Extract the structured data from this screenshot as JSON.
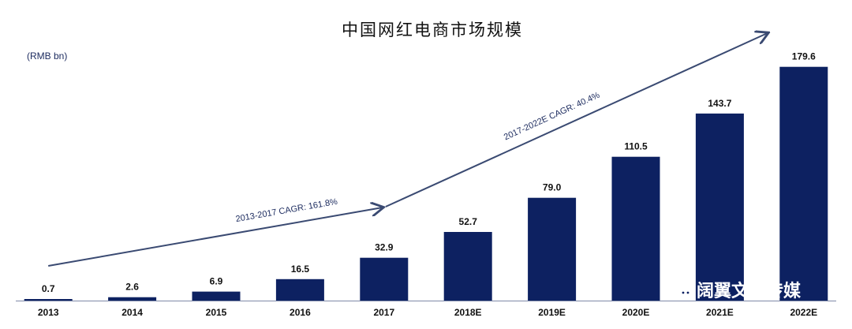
{
  "chart_data": {
    "type": "bar",
    "title": "中国网红电商市场规模",
    "ylabel": "(RMB bn)",
    "categories": [
      "2013",
      "2014",
      "2015",
      "2016",
      "2017",
      "2018E",
      "2019E",
      "2020E",
      "2021E",
      "2022E"
    ],
    "values": [
      0.7,
      2.6,
      6.9,
      16.5,
      32.9,
      52.7,
      79.0,
      110.5,
      143.7,
      179.6
    ],
    "value_labels": [
      "0.7",
      "2.6",
      "6.9",
      "16.5",
      "32.9",
      "52.7",
      "79.0",
      "110.5",
      "143.7",
      "179.6"
    ],
    "ylim": [
      0,
      180
    ],
    "grid": false,
    "legend": "none",
    "annotations": [
      {
        "text": "2013-2017  CAGR: 161.8%",
        "from": "2013",
        "to": "2017"
      },
      {
        "text": "2017-2022E  CAGR: 40.4%",
        "from": "2017",
        "to": "2022E"
      }
    ],
    "colors": {
      "bar": "#0d2161",
      "arrow": "#3a4a72",
      "axis": "#7f8aa8"
    }
  },
  "watermark": {
    "text": "阔翼文化传媒",
    "icon": "wechat-icon"
  }
}
